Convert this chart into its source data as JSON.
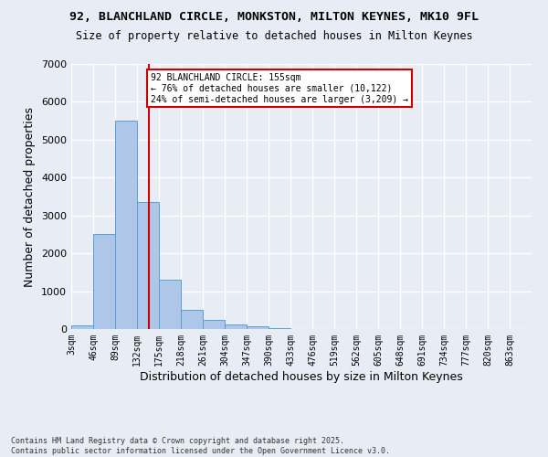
{
  "title_line1": "92, BLANCHLAND CIRCLE, MONKSTON, MILTON KEYNES, MK10 9FL",
  "title_line2": "Size of property relative to detached houses in Milton Keynes",
  "xlabel": "Distribution of detached houses by size in Milton Keynes",
  "ylabel": "Number of detached properties",
  "bin_labels": [
    "3sqm",
    "46sqm",
    "89sqm",
    "132sqm",
    "175sqm",
    "218sqm",
    "261sqm",
    "304sqm",
    "347sqm",
    "390sqm",
    "433sqm",
    "476sqm",
    "519sqm",
    "562sqm",
    "605sqm",
    "648sqm",
    "691sqm",
    "734sqm",
    "777sqm",
    "820sqm",
    "863sqm"
  ],
  "bin_edges": [
    3,
    46,
    89,
    132,
    175,
    218,
    261,
    304,
    347,
    390,
    433,
    476,
    519,
    562,
    605,
    648,
    691,
    734,
    777,
    820,
    863
  ],
  "bar_heights": [
    100,
    2500,
    5500,
    3350,
    1300,
    500,
    230,
    120,
    70,
    30,
    0,
    0,
    0,
    0,
    0,
    0,
    0,
    0,
    0,
    0,
    0
  ],
  "bar_color": "#aec6e8",
  "bar_edgecolor": "#5a9fd4",
  "vline_x": 155,
  "vline_color": "#cc0000",
  "annotation_title": "92 BLANCHLAND CIRCLE: 155sqm",
  "annotation_line1": "← 76% of detached houses are smaller (10,122)",
  "annotation_line2": "24% of semi-detached houses are larger (3,209) →",
  "annotation_box_edgecolor": "#cc0000",
  "ylim": [
    0,
    7000
  ],
  "fig_background_color": "#e8edf5",
  "ax_background_color": "#e8edf5",
  "grid_color": "#ffffff",
  "footer_line1": "Contains HM Land Registry data © Crown copyright and database right 2025.",
  "footer_line2": "Contains public sector information licensed under the Open Government Licence v3.0."
}
